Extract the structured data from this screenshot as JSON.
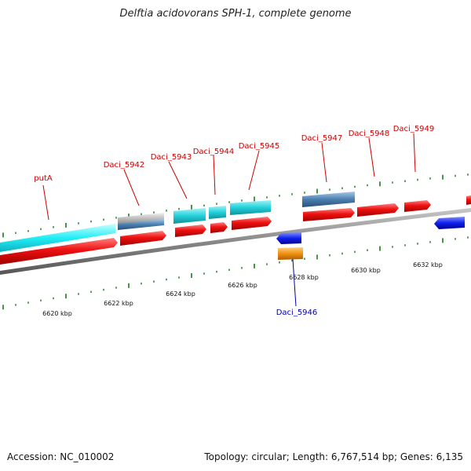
{
  "title": "Delftia acidovorans SPH-1, complete genome",
  "footer": {
    "accession": "Accession: NC_010002",
    "topology": "Topology: circular; Length: 6,767,514 bp; Genes: 6,135"
  },
  "colors": {
    "forward_label": "#cc0000",
    "reverse_label": "#0000aa",
    "cds_red": "#ee1111",
    "cds_cyan": "#22c8d0",
    "cds_steel": "#4a7fb0",
    "cds_blue": "#1020ee",
    "cds_orange": "#f09010",
    "backbone": "#808080",
    "ticks": "#1a7a1a"
  },
  "scale_labels": [
    "6620 kbp",
    "6622 kbp",
    "6624 kbp",
    "6626 kbp",
    "6628 kbp",
    "6630 kbp",
    "6632 kbp"
  ],
  "gene_labels": [
    {
      "text": "putA",
      "strand": "forward"
    },
    {
      "text": "Daci_5942",
      "strand": "forward"
    },
    {
      "text": "Daci_5943",
      "strand": "forward"
    },
    {
      "text": "Daci_5944",
      "strand": "forward"
    },
    {
      "text": "Daci_5945",
      "strand": "forward"
    },
    {
      "text": "Daci_5947",
      "strand": "forward"
    },
    {
      "text": "Daci_5948",
      "strand": "forward"
    },
    {
      "text": "Daci_5949",
      "strand": "forward"
    },
    {
      "text": "Daci_5946",
      "strand": "reverse"
    }
  ]
}
